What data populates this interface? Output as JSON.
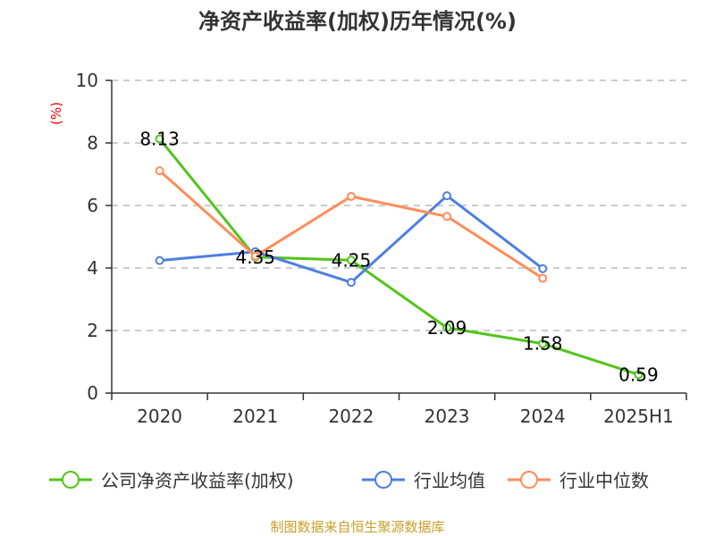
{
  "chart_data": {
    "type": "line",
    "title": "净资产收益率(加权)历年情况(%)",
    "ylabel": "(%)",
    "xlabel": "",
    "ylim": [
      0,
      10
    ],
    "yticks": [
      0,
      2,
      4,
      6,
      8,
      10
    ],
    "grid": true,
    "legend_placement": "bottom",
    "categories": [
      "2020",
      "2021",
      "2022",
      "2023",
      "2024",
      "2025H1"
    ],
    "series": [
      {
        "name": "公司净资产收益率(加权)",
        "color": "#52c41a",
        "values": [
          8.13,
          4.35,
          4.25,
          2.09,
          1.58,
          0.59
        ],
        "labels": [
          "8.13",
          "4.35",
          "4.25",
          "2.09",
          "1.58",
          "0.59"
        ]
      },
      {
        "name": "行业均值",
        "color": "#4e7fe0",
        "values": [
          4.24,
          4.52,
          3.54,
          6.31,
          3.98,
          null
        ]
      },
      {
        "name": "行业中位数",
        "color": "#ff8c5a",
        "values": [
          7.11,
          4.38,
          6.29,
          5.65,
          3.67,
          null
        ]
      }
    ],
    "source": "制图数据来自恒生聚源数据库"
  }
}
